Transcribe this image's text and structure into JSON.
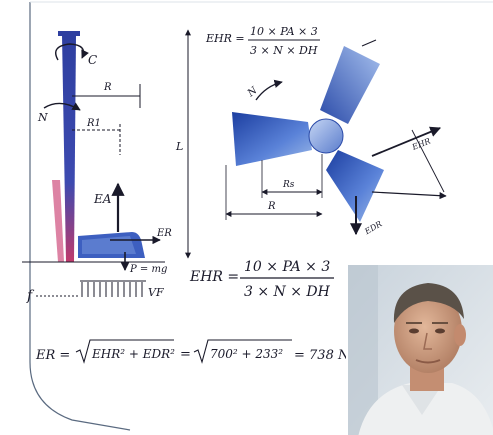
{
  "colors": {
    "ink": "#1a1a2a",
    "rotor_blue": "#2f54b8",
    "tower_blue": "#3547a6",
    "tower_red": "#c03a6b",
    "frame_line": "#5a6a80"
  },
  "formulas": {
    "ehr_top": {
      "lhs": "EHR =",
      "numerator": "10 × PA × 3",
      "denominator": "3 × N × DH"
    },
    "ehr_mid": {
      "lhs": "EHR =",
      "numerator": "10 × PA × 3",
      "denominator": "3 × N × DH"
    },
    "er": {
      "lhs": "ER =",
      "rad1": "EHR² + EDR²",
      "rad2": "700² + 233²",
      "result": "= 738 N"
    }
  },
  "tower_labels": {
    "c": "C",
    "n": "N",
    "r": "R",
    "r1": "R1",
    "ea": "EA",
    "er": "ER",
    "pmg": "P = mg",
    "f": "f",
    "vf": "VF",
    "l": "L"
  },
  "rotor_labels": {
    "n": "N",
    "ehr": "EHR",
    "edr": "EDR",
    "rs": "Rs",
    "r": "R"
  },
  "photo": {
    "icon": "person-photo-icon"
  }
}
